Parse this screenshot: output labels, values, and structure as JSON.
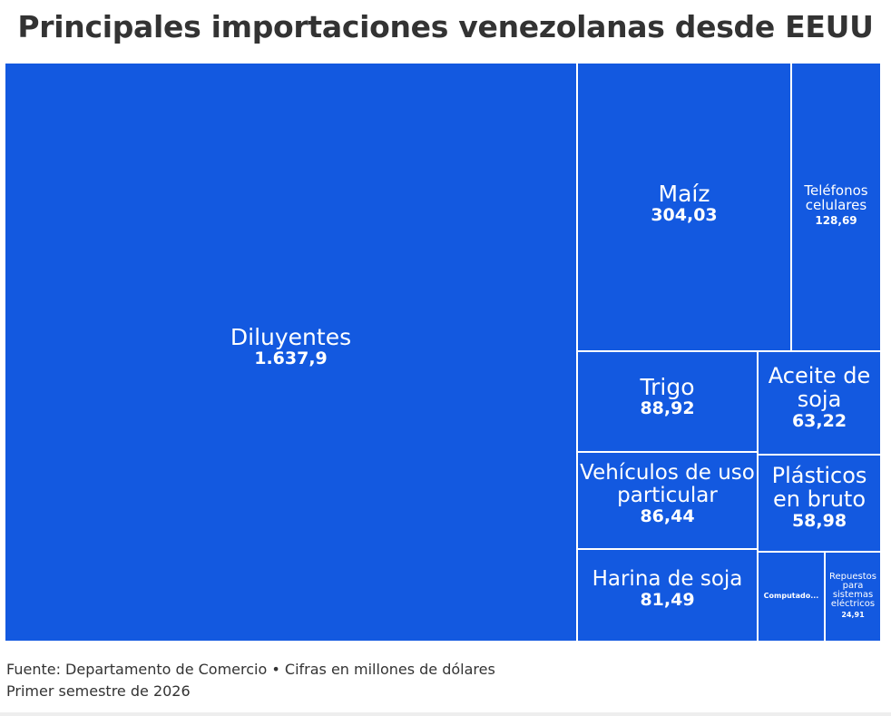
{
  "title": "Principales importaciones venezolanas desde EEUU",
  "footer": {
    "source": "Fuente: Departamento de Comercio • Cifras en millones de dólares",
    "period": "Primer semestre de 2026"
  },
  "colors": {
    "tile": "#1359e0",
    "text": "#ffffff",
    "title": "#333333"
  },
  "chart_data": {
    "type": "treemap",
    "title": "Principales importaciones venezolanas desde EEUU",
    "unit": "millones de dólares",
    "items": [
      {
        "name": "Diluyentes",
        "value": 1637.9,
        "value_label": "1.637,9"
      },
      {
        "name": "Maíz",
        "value": 304.03,
        "value_label": "304,03"
      },
      {
        "name": "Teléfonos celulares",
        "value": 128.69,
        "value_label": "128,69"
      },
      {
        "name": "Trigo",
        "value": 88.92,
        "value_label": "88,92"
      },
      {
        "name": "Aceite de soja",
        "value": 63.22,
        "value_label": "63,22"
      },
      {
        "name": "Vehículos de uso particular",
        "value": 86.44,
        "value_label": "86,44"
      },
      {
        "name": "Plásticos en bruto",
        "value": 58.98,
        "value_label": "58,98"
      },
      {
        "name": "Harina de soja",
        "value": 81.49,
        "value_label": "81,49"
      },
      {
        "name": "Computado...",
        "value": null,
        "value_label": ""
      },
      {
        "name": "Repuestos para sistemas eléctricos",
        "value": 24.91,
        "value_label": "24,91"
      }
    ]
  }
}
